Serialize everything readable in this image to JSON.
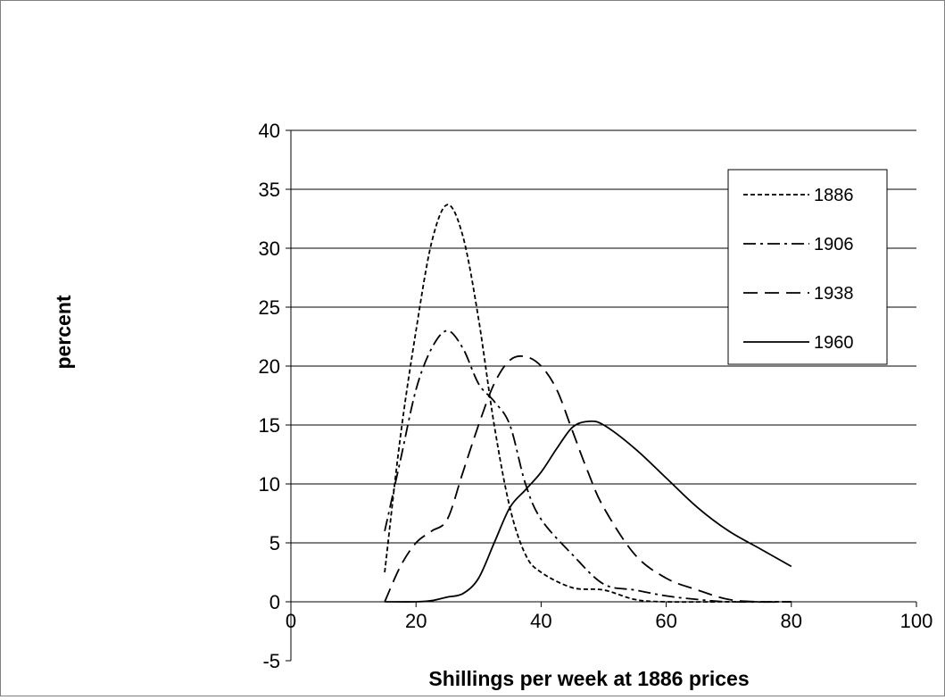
{
  "chart_data": {
    "type": "line",
    "title": "",
    "xlabel": "Shillings per week at 1886 prices",
    "ylabel": "percent",
    "xlim": [
      0,
      100
    ],
    "ylim": [
      -5,
      40
    ],
    "xticks": [
      0,
      20,
      40,
      60,
      80,
      100
    ],
    "yticks": [
      -5,
      0,
      5,
      10,
      15,
      20,
      25,
      30,
      35,
      40
    ],
    "grid": "horizontal major gridlines",
    "legend_position": "top-right",
    "colors": {
      "line": "#000000",
      "grid": "#000000",
      "frame": "#808080",
      "background": "#ffffff"
    },
    "series": [
      {
        "name": "1886",
        "style": "dotted-dash",
        "points": [
          [
            15,
            2.5
          ],
          [
            17.5,
            14
          ],
          [
            20,
            23
          ],
          [
            22.5,
            30.5
          ],
          [
            25,
            33.7
          ],
          [
            27.5,
            31
          ],
          [
            30,
            24
          ],
          [
            32.5,
            15
          ],
          [
            35,
            8
          ],
          [
            37.5,
            4
          ],
          [
            40,
            2.5
          ],
          [
            45,
            1.2
          ],
          [
            50,
            1.0
          ],
          [
            55,
            0.2
          ],
          [
            60,
            0
          ],
          [
            70,
            0
          ],
          [
            80,
            0
          ]
        ]
      },
      {
        "name": "1906",
        "style": "dash-dot",
        "points": [
          [
            15,
            6
          ],
          [
            17.5,
            12
          ],
          [
            20,
            18
          ],
          [
            22.5,
            21.5
          ],
          [
            25,
            23
          ],
          [
            27.5,
            21.5
          ],
          [
            30,
            18.5
          ],
          [
            32.5,
            17
          ],
          [
            35,
            15
          ],
          [
            37.5,
            10
          ],
          [
            40,
            7
          ],
          [
            45,
            4
          ],
          [
            50,
            1.5
          ],
          [
            55,
            1.0
          ],
          [
            60,
            0.5
          ],
          [
            65,
            0.2
          ],
          [
            70,
            0
          ],
          [
            80,
            0
          ]
        ]
      },
      {
        "name": "1938",
        "style": "long-dash",
        "points": [
          [
            15,
            0
          ],
          [
            17.5,
            3
          ],
          [
            20,
            5
          ],
          [
            22.5,
            6
          ],
          [
            25,
            7
          ],
          [
            27.5,
            11
          ],
          [
            30,
            15
          ],
          [
            32.5,
            18.5
          ],
          [
            35,
            20.5
          ],
          [
            37.5,
            20.8
          ],
          [
            40,
            20
          ],
          [
            42.5,
            18
          ],
          [
            45,
            14.5
          ],
          [
            47.5,
            11
          ],
          [
            50,
            8
          ],
          [
            55,
            4
          ],
          [
            60,
            2
          ],
          [
            65,
            1
          ],
          [
            70,
            0.2
          ],
          [
            75,
            0
          ],
          [
            80,
            0
          ]
        ]
      },
      {
        "name": "1960",
        "style": "solid",
        "points": [
          [
            15,
            0
          ],
          [
            20,
            0
          ],
          [
            22.5,
            0.1
          ],
          [
            25,
            0.4
          ],
          [
            27.5,
            0.7
          ],
          [
            30,
            2
          ],
          [
            32.5,
            5
          ],
          [
            35,
            8
          ],
          [
            37.5,
            9.5
          ],
          [
            40,
            11
          ],
          [
            42.5,
            13
          ],
          [
            45,
            14.8
          ],
          [
            47.5,
            15.3
          ],
          [
            50,
            15
          ],
          [
            55,
            13
          ],
          [
            60,
            10.5
          ],
          [
            65,
            8
          ],
          [
            70,
            6
          ],
          [
            75,
            4.5
          ],
          [
            80,
            3
          ]
        ]
      }
    ]
  }
}
